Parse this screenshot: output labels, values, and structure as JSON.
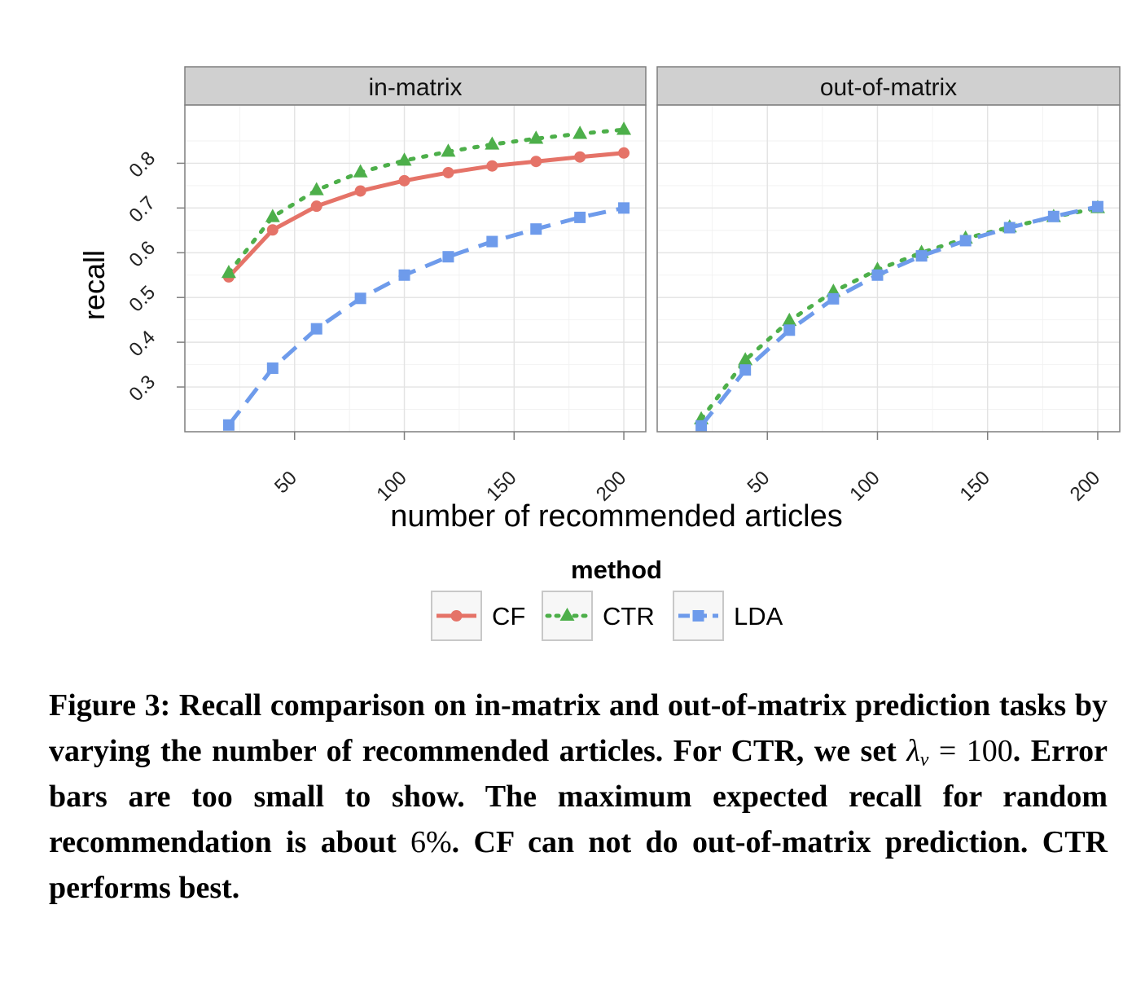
{
  "chart_data": {
    "type": "line",
    "facets": [
      "in-matrix",
      "out-of-matrix"
    ],
    "xlabel": "number of recommended articles",
    "ylabel": "recall",
    "x": [
      20,
      40,
      60,
      80,
      100,
      120,
      140,
      160,
      180,
      200
    ],
    "xlim": [
      0,
      210
    ],
    "ylim": [
      0.2,
      0.93
    ],
    "xticks": [
      "50",
      "100",
      "150",
      "200"
    ],
    "yticks": [
      "0.3",
      "0.4",
      "0.5",
      "0.6",
      "0.7",
      "0.8"
    ],
    "grid": true,
    "legend_title": "method",
    "legend_position": "bottom",
    "series": [
      {
        "name": "CF",
        "color": "#E57368",
        "marker": "circle",
        "line": "solid",
        "panels": {
          "in-matrix": [
            0.546,
            0.651,
            0.704,
            0.738,
            0.761,
            0.779,
            0.794,
            0.804,
            0.814,
            0.823
          ],
          "out-of-matrix": null
        }
      },
      {
        "name": "CTR",
        "color": "#4DAF4A",
        "marker": "triangle",
        "line": "dotted",
        "panels": {
          "in-matrix": [
            0.555,
            0.68,
            0.74,
            0.78,
            0.806,
            0.826,
            0.842,
            0.855,
            0.866,
            0.875
          ],
          "out-of-matrix": [
            0.228,
            0.36,
            0.448,
            0.513,
            0.562,
            0.6,
            0.632,
            0.657,
            0.68,
            0.7
          ]
        }
      },
      {
        "name": "LDA",
        "color": "#6E9BEB",
        "marker": "square",
        "line": "dashed",
        "panels": {
          "in-matrix": [
            0.215,
            0.342,
            0.43,
            0.498,
            0.55,
            0.591,
            0.625,
            0.653,
            0.679,
            0.7
          ],
          "out-of-matrix": [
            0.213,
            0.338,
            0.427,
            0.497,
            0.55,
            0.593,
            0.627,
            0.656,
            0.681,
            0.703
          ]
        }
      }
    ]
  },
  "caption": {
    "part1": "Figure 3:  Recall comparison on in-matrix and out-of-matrix prediction tasks by varying the number of recommended articles.  For CTR, we set ",
    "math_lambda": "λ",
    "math_sub": "v",
    "math_rest": " = 100",
    "part2": ".  Error bars are too small to show. The maximum expected recall for random recommendation is about ",
    "math_percent": "6%",
    "part3": ". CF can not do out-of-matrix prediction. CTR performs best."
  }
}
